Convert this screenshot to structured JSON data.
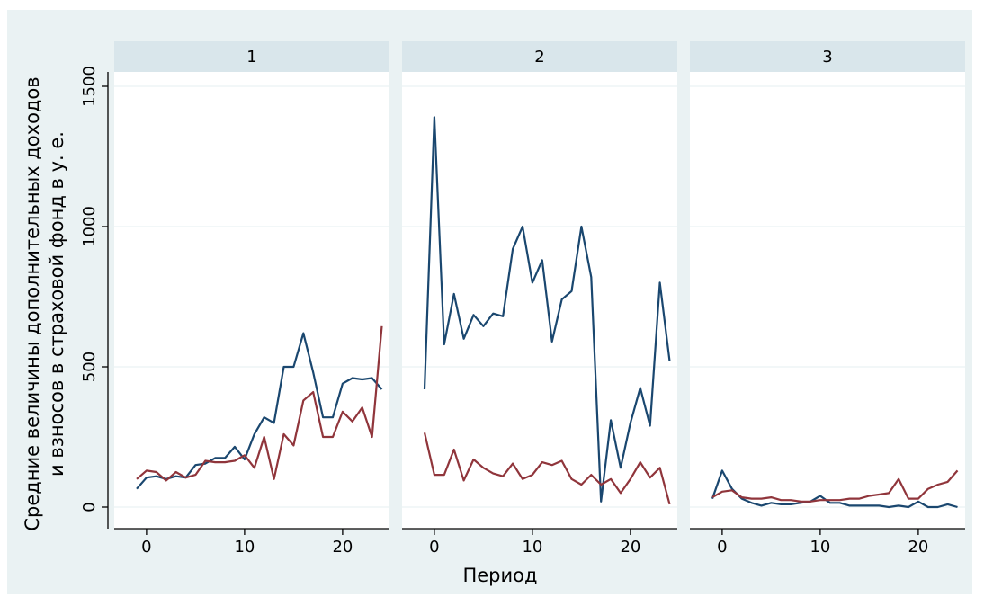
{
  "chart_data": {
    "type": "line",
    "ylabel_lines": [
      "Средние величины дополнительных доходов",
      "и взносов в страховой фонд в у. е."
    ],
    "xlabel": "Период",
    "ylim": [
      0,
      1500
    ],
    "yticks": [
      0,
      500,
      1000,
      1500
    ],
    "xlim": [
      -1,
      24
    ],
    "xticks": [
      0,
      10,
      20
    ],
    "grid": true,
    "colors": {
      "outer_bg": "#eaf2f3",
      "strip_bg": "#d9e6eb",
      "grid": "#eaf2f3",
      "series_1": "#1a476f",
      "series_2": "#90353b"
    },
    "panels": [
      {
        "title": "1",
        "series": [
          {
            "x": [
              -1,
              0,
              1,
              2,
              3,
              4,
              5,
              6,
              7,
              8,
              9,
              10,
              11,
              12,
              13,
              14,
              15,
              16,
              17,
              18,
              19,
              20,
              21,
              22,
              23,
              24
            ],
            "values": [
              65,
              105,
              110,
              100,
              110,
              105,
              150,
              155,
              175,
              175,
              215,
              170,
              260,
              320,
              300,
              500,
              500,
              620,
              480,
              320,
              320,
              440,
              460,
              455,
              460,
              420
            ]
          },
          {
            "x": [
              -1,
              0,
              1,
              2,
              3,
              4,
              5,
              6,
              7,
              8,
              9,
              10,
              11,
              12,
              13,
              14,
              15,
              16,
              17,
              18,
              19,
              20,
              21,
              22,
              23,
              24
            ],
            "values": [
              100,
              130,
              125,
              95,
              125,
              105,
              115,
              165,
              160,
              160,
              165,
              185,
              140,
              250,
              100,
              260,
              220,
              380,
              410,
              250,
              250,
              340,
              305,
              355,
              250,
              645
            ]
          }
        ]
      },
      {
        "title": "2",
        "series": [
          {
            "x": [
              -1,
              0,
              1,
              2,
              3,
              4,
              5,
              6,
              7,
              8,
              9,
              10,
              11,
              12,
              13,
              14,
              15,
              16,
              17,
              18,
              19,
              20,
              21,
              22,
              23,
              24
            ],
            "values": [
              420,
              1390,
              580,
              760,
              600,
              685,
              645,
              690,
              680,
              920,
              1000,
              800,
              880,
              590,
              740,
              770,
              1000,
              820,
              20,
              310,
              140,
              300,
              425,
              290,
              800,
              520
            ]
          },
          {
            "x": [
              -1,
              0,
              1,
              2,
              3,
              4,
              5,
              6,
              7,
              8,
              9,
              10,
              11,
              12,
              13,
              14,
              15,
              16,
              17,
              18,
              19,
              20,
              21,
              22,
              23,
              24
            ],
            "values": [
              265,
              115,
              115,
              205,
              95,
              170,
              140,
              120,
              110,
              155,
              100,
              115,
              160,
              150,
              165,
              100,
              80,
              115,
              80,
              100,
              50,
              100,
              160,
              105,
              140,
              10
            ]
          }
        ]
      },
      {
        "title": "3",
        "series": [
          {
            "x": [
              -1,
              0,
              1,
              2,
              3,
              4,
              5,
              6,
              7,
              8,
              9,
              10,
              11,
              12,
              13,
              14,
              15,
              16,
              17,
              18,
              19,
              20,
              21,
              22,
              23,
              24
            ],
            "values": [
              30,
              130,
              65,
              30,
              15,
              5,
              15,
              10,
              10,
              15,
              20,
              40,
              15,
              15,
              5,
              5,
              5,
              5,
              0,
              5,
              0,
              20,
              0,
              0,
              10,
              0
            ]
          },
          {
            "x": [
              -1,
              0,
              1,
              2,
              3,
              4,
              5,
              6,
              7,
              8,
              9,
              10,
              11,
              12,
              13,
              14,
              15,
              16,
              17,
              18,
              19,
              20,
              21,
              22,
              23,
              24
            ],
            "values": [
              35,
              55,
              60,
              35,
              30,
              30,
              35,
              25,
              25,
              20,
              20,
              25,
              25,
              25,
              30,
              30,
              40,
              45,
              50,
              100,
              30,
              30,
              65,
              80,
              90,
              130
            ]
          }
        ]
      }
    ]
  }
}
